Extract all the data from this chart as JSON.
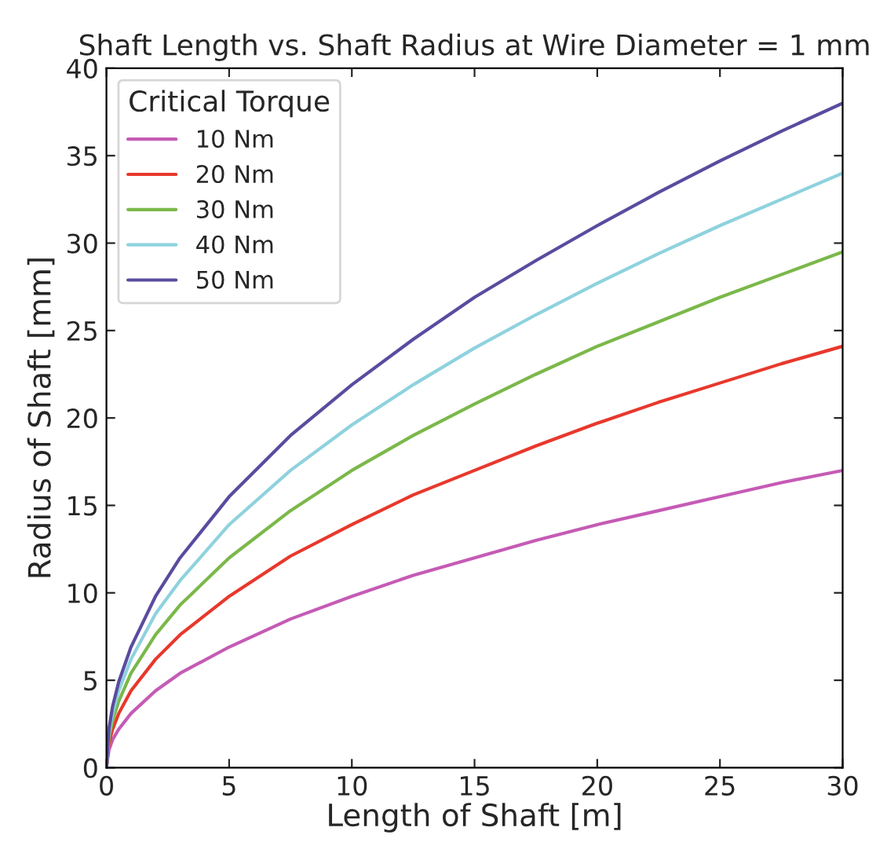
{
  "chart_data": {
    "type": "line",
    "title": "Shaft Length vs. Shaft Radius at Wire Diameter = 1 mm",
    "xlabel": "Length of Shaft [m]",
    "ylabel": "Radius of Shaft [mm]",
    "legend_title": "Critical Torque",
    "x": [
      0,
      0.1,
      0.25,
      0.5,
      1,
      2,
      3,
      5,
      7.5,
      10,
      12.5,
      15,
      17.5,
      20,
      22.5,
      25,
      27.5,
      30
    ],
    "series": [
      {
        "name": "10 Nm",
        "color": "#c55bb5",
        "values": [
          0,
          1.0,
          1.6,
          2.2,
          3.1,
          4.4,
          5.4,
          6.9,
          8.5,
          9.8,
          11.0,
          12.0,
          13.0,
          13.9,
          14.7,
          15.5,
          16.3,
          17.0
        ]
      },
      {
        "name": "20 Nm",
        "color": "#e8382c",
        "values": [
          0,
          1.4,
          2.2,
          3.1,
          4.4,
          6.2,
          7.6,
          9.8,
          12.1,
          13.9,
          15.6,
          17.0,
          18.4,
          19.7,
          20.9,
          22.0,
          23.1,
          24.1
        ]
      },
      {
        "name": "30 Nm",
        "color": "#7bb84a",
        "values": [
          0,
          1.7,
          2.7,
          3.8,
          5.4,
          7.6,
          9.3,
          12.0,
          14.7,
          17.0,
          19.0,
          20.8,
          22.5,
          24.1,
          25.5,
          26.9,
          28.2,
          29.5
        ]
      },
      {
        "name": "40 Nm",
        "color": "#8ed2de",
        "values": [
          0,
          2.0,
          3.1,
          4.4,
          6.2,
          8.8,
          10.7,
          13.9,
          17.0,
          19.6,
          21.9,
          24.0,
          25.9,
          27.7,
          29.4,
          31.0,
          32.5,
          34.0
        ]
      },
      {
        "name": "50 Nm",
        "color": "#5b4b9f",
        "values": [
          0,
          2.2,
          3.5,
          4.9,
          6.9,
          9.8,
          12.0,
          15.5,
          19.0,
          21.9,
          24.5,
          26.9,
          29.0,
          31.0,
          32.9,
          34.7,
          36.4,
          38.0
        ]
      }
    ],
    "xlim": [
      0,
      30
    ],
    "ylim": [
      0,
      40
    ],
    "xticks": [
      0,
      5,
      10,
      15,
      20,
      25,
      30
    ],
    "yticks": [
      0,
      5,
      10,
      15,
      20,
      25,
      30,
      35,
      40
    ],
    "grid": false,
    "legend": "top left",
    "marker": "none",
    "line_style": "solid"
  }
}
